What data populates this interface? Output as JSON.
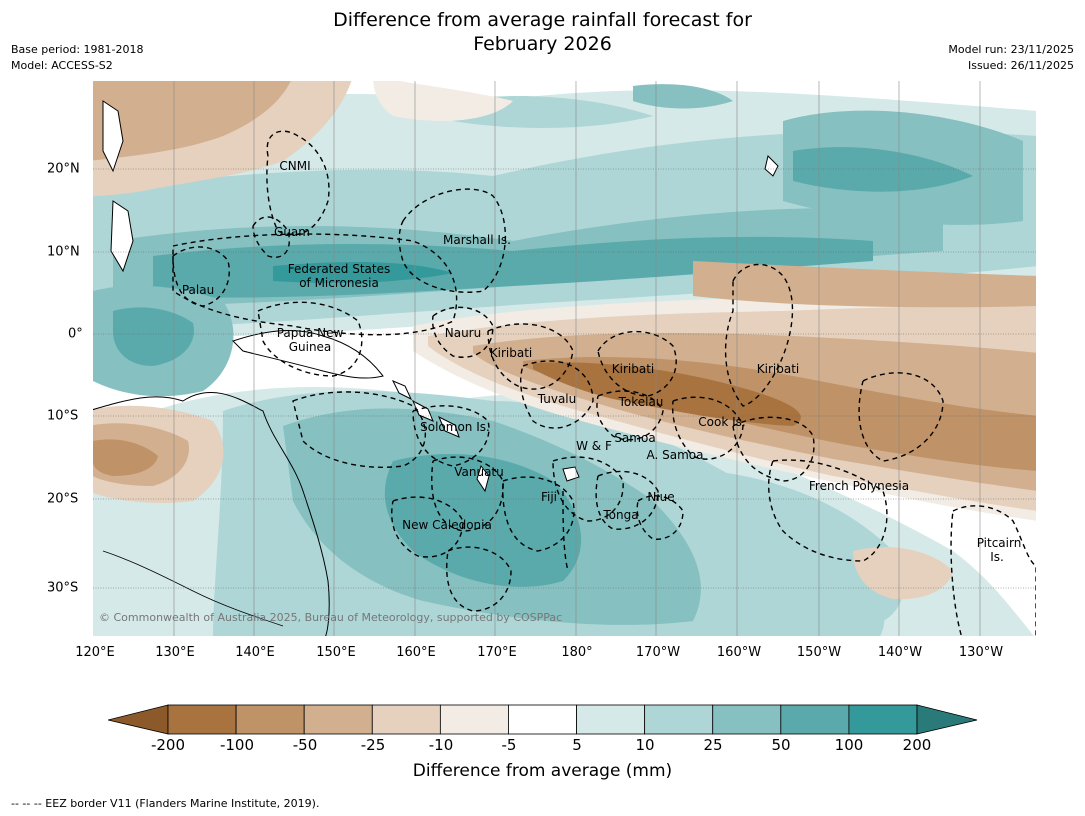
{
  "title": {
    "line1": "Difference from average rainfall forecast for",
    "line2": "February 2026"
  },
  "meta": {
    "base_period": "Base period: 1981-2018",
    "model": "Model: ACCESS-S2",
    "model_run": "Model run: 23/11/2025",
    "issued": "Issued: 26/11/2025"
  },
  "axes": {
    "longitudes": [
      "120°E",
      "130°E",
      "140°E",
      "150°E",
      "160°E",
      "170°E",
      "180°",
      "170°W",
      "160°W",
      "150°W",
      "140°W",
      "130°W"
    ],
    "latitudes": [
      "20°N",
      "10°N",
      "0°",
      "10°S",
      "20°S",
      "30°S"
    ]
  },
  "regions": [
    "CNMI",
    "Guam",
    "Marshall Is.",
    "Federated States",
    "of Micronesia",
    "Palau",
    "Papua New",
    "Guinea",
    "Nauru",
    "Kiribati",
    "Kiribati",
    "Kiribati",
    "Tuvalu",
    "Tokelau",
    "Cook Is.",
    "Solomon Is.",
    "Samoa",
    "W & F",
    "A. Samoa",
    "Vanuatu",
    "Fiji",
    "Niue",
    "Tonga",
    "French Polynesia",
    "New Caledonia",
    "Pitcairn",
    "Is."
  ],
  "copyright": "© Commonwealth of Australia 2025, Bureau of Meteorology, supported by COSPPac",
  "colorbar": {
    "title": "Difference from average (mm)",
    "ticks": [
      "-200",
      "-100",
      "-50",
      "-25",
      "-10",
      "-5",
      "5",
      "10",
      "25",
      "50",
      "100",
      "200"
    ],
    "colors": {
      "under": "#8c5a2a",
      "bins": [
        "#a8733f",
        "#bf9268",
        "#d2af8f",
        "#e5d1bd",
        "#f2ece4",
        "#ffffff",
        "#d4e9e8",
        "#aed6d6",
        "#86c0c0",
        "#5aaaac",
        "#34999a"
      ],
      "over": "#2a7a7a"
    }
  },
  "footer": "-- -- -- EEZ border V11 (Flanders Marine Institute, 2019)."
}
